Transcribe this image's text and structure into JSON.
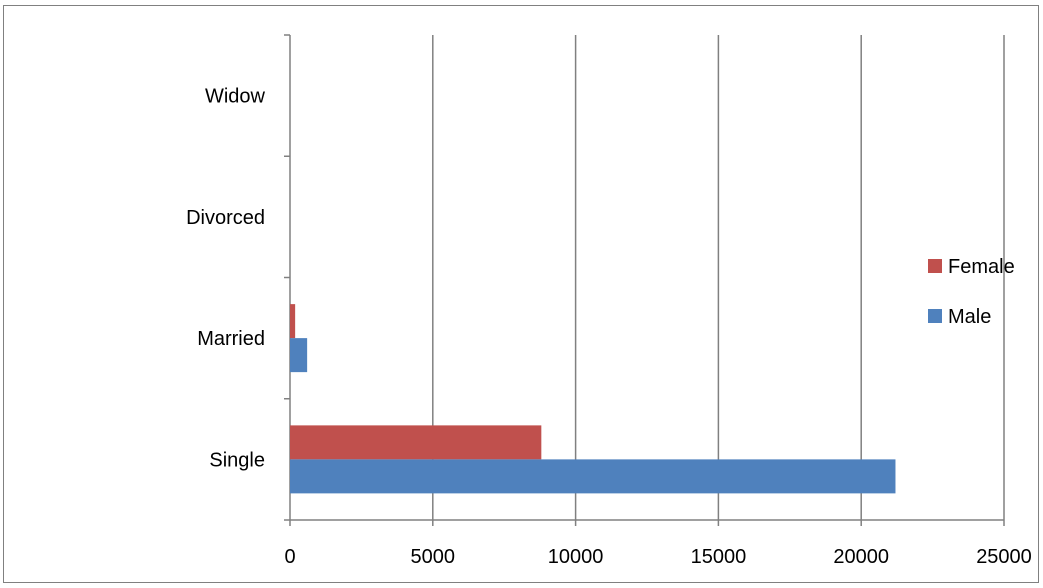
{
  "chart_data": {
    "type": "bar",
    "orientation": "horizontal",
    "categories": [
      "Single",
      "Married",
      "Divorced",
      "Widow"
    ],
    "series": [
      {
        "name": "Male",
        "values": [
          21200,
          600,
          0,
          0
        ],
        "color": "#4f81bd"
      },
      {
        "name": "Female",
        "values": [
          8800,
          180,
          0,
          0
        ],
        "color": "#c0504d"
      }
    ],
    "xlim": [
      0,
      25000
    ],
    "xticks": [
      0,
      5000,
      10000,
      15000,
      20000,
      25000
    ],
    "grid": "vertical",
    "legend": "right",
    "title": "",
    "xlabel": "",
    "ylabel": ""
  }
}
